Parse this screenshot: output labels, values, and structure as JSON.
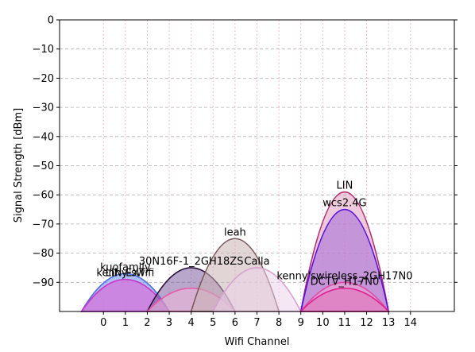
{
  "chart_data": {
    "type": "area",
    "xlabel": "Wifi Channel",
    "ylabel": "Signal Strength [dBm]",
    "xlim": [
      -2,
      16
    ],
    "ylim": [
      -100,
      0
    ],
    "x_ticks": [
      0,
      1,
      2,
      3,
      4,
      5,
      6,
      7,
      8,
      9,
      10,
      11,
      12,
      13,
      14
    ],
    "x_tick_labels": [
      "0",
      "1",
      "2",
      "3",
      "4",
      "5",
      "6",
      "7",
      "8",
      "9",
      "10",
      "11",
      "12",
      "13",
      "14"
    ],
    "y_ticks": [
      0,
      -10,
      -20,
      -30,
      -40,
      -50,
      -60,
      -70,
      -80,
      -90
    ],
    "y_tick_labels": [
      "0",
      "−10",
      "−20",
      "−30",
      "−40",
      "−50",
      "−60",
      "−70",
      "−80",
      "−90"
    ],
    "grid": {
      "x": "dotted-pink",
      "y": "dashed-gray"
    },
    "series": [
      {
        "name": "kuofamily",
        "channel": 1,
        "peak": -87,
        "color": "#4a6ee0",
        "fill": "#6b8ef0"
      },
      {
        "name": "LIN-EXT",
        "channel": 1,
        "peak": -89,
        "color": "#cc44dd",
        "fill": "#d68ae8"
      },
      {
        "name": "kenny-swifi",
        "channel": 1,
        "peak": -89,
        "color": "#c838c8",
        "fill": "#cf6fd6"
      },
      {
        "name": "30N16F-1_2GH18ZS",
        "channel": 4,
        "peak": -85,
        "color": "#2a0f3a",
        "fill": "#7f5fa0"
      },
      {
        "name": "",
        "channel": 4,
        "peak": -92,
        "color": "#e85aa8",
        "fill": "#f0b8dc"
      },
      {
        "name": "leah",
        "channel": 6,
        "peak": -75,
        "color": "#7a5a5a",
        "fill": "#c9b3b3"
      },
      {
        "name": "Calla",
        "channel": 7,
        "peak": -85,
        "color": "#d8a2d2",
        "fill": "#ecd3ea"
      },
      {
        "name": "LIN",
        "channel": 11,
        "peak": -59,
        "color": "#b03070",
        "fill": "#e0a0c0"
      },
      {
        "name": "wcs2.4G",
        "channel": 11,
        "peak": -65,
        "color": "#5a10e0",
        "fill": "#a46ad8"
      },
      {
        "name": "kenny'swireless_2GH17N0",
        "channel": 11,
        "peak": -90,
        "color": "#e04aa8",
        "fill": "#f0a8d2"
      },
      {
        "name": "DCTV_H17N0",
        "channel": 11,
        "peak": -92,
        "color": "#e02090",
        "fill": "#e070b8"
      }
    ]
  }
}
